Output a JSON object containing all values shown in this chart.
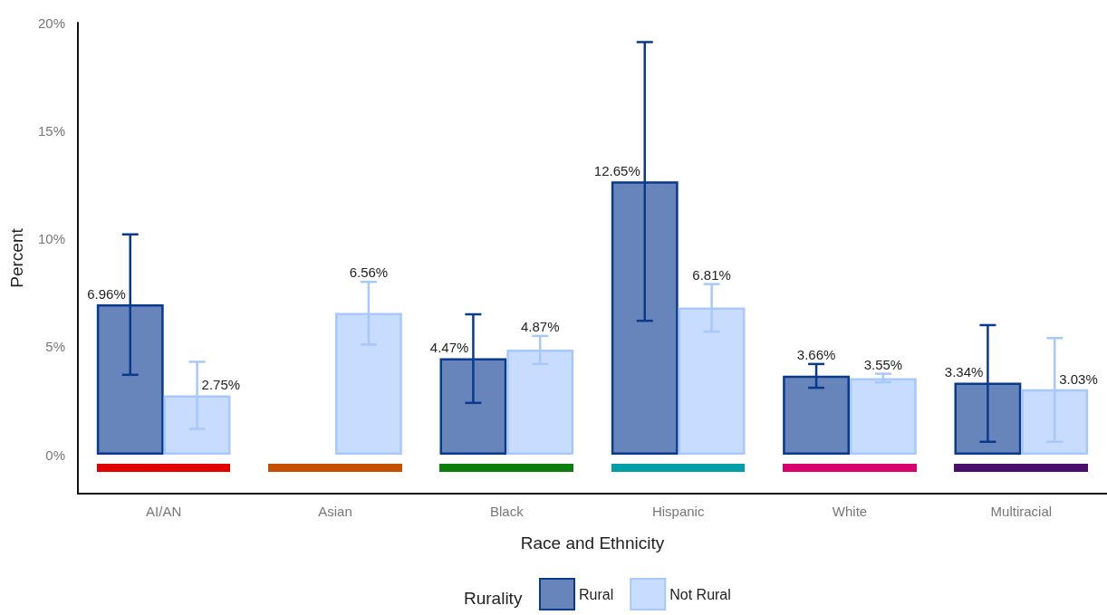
{
  "chart_data": {
    "type": "bar",
    "xlabel": "Race and Ethnicity",
    "ylabel": "Percent",
    "legend_title": "Rurality",
    "legend": "bottom",
    "grid": false,
    "categories": [
      "AI/AN",
      "Asian",
      "Black",
      "Hispanic",
      "White",
      "Multiracial"
    ],
    "ylim": [
      -1.8,
      20
    ],
    "yticks": [
      {
        "value": 0,
        "label": "0%"
      },
      {
        "value": 5,
        "label": "5%"
      },
      {
        "value": 10,
        "label": "10%"
      },
      {
        "value": 15,
        "label": "15%"
      },
      {
        "value": 20,
        "label": "20%"
      }
    ],
    "series": [
      {
        "name": "Rural",
        "color": "#6785bb",
        "values": [
          6.96,
          null,
          4.47,
          12.65,
          3.66,
          3.34
        ],
        "value_labels": [
          "6.96%",
          null,
          "4.47%",
          "12.65%",
          "3.66%",
          "3.34%"
        ],
        "errors": [
          [
            3.7,
            10.2
          ],
          null,
          [
            2.4,
            6.5
          ],
          [
            6.2,
            19.1
          ],
          [
            3.1,
            4.2
          ],
          [
            0.6,
            6.0
          ]
        ]
      },
      {
        "name": "Not Rural",
        "color": "#c7dcfe",
        "values": [
          2.75,
          6.56,
          4.87,
          6.81,
          3.55,
          3.03
        ],
        "value_labels": [
          "2.75%",
          "6.56%",
          "4.87%",
          "6.81%",
          "3.55%",
          "3.03%"
        ],
        "errors": [
          [
            1.2,
            4.3
          ],
          [
            5.1,
            8.0
          ],
          [
            4.2,
            5.5
          ],
          [
            5.7,
            7.9
          ],
          [
            3.35,
            3.75
          ],
          [
            0.6,
            5.4
          ]
        ]
      }
    ]
  }
}
